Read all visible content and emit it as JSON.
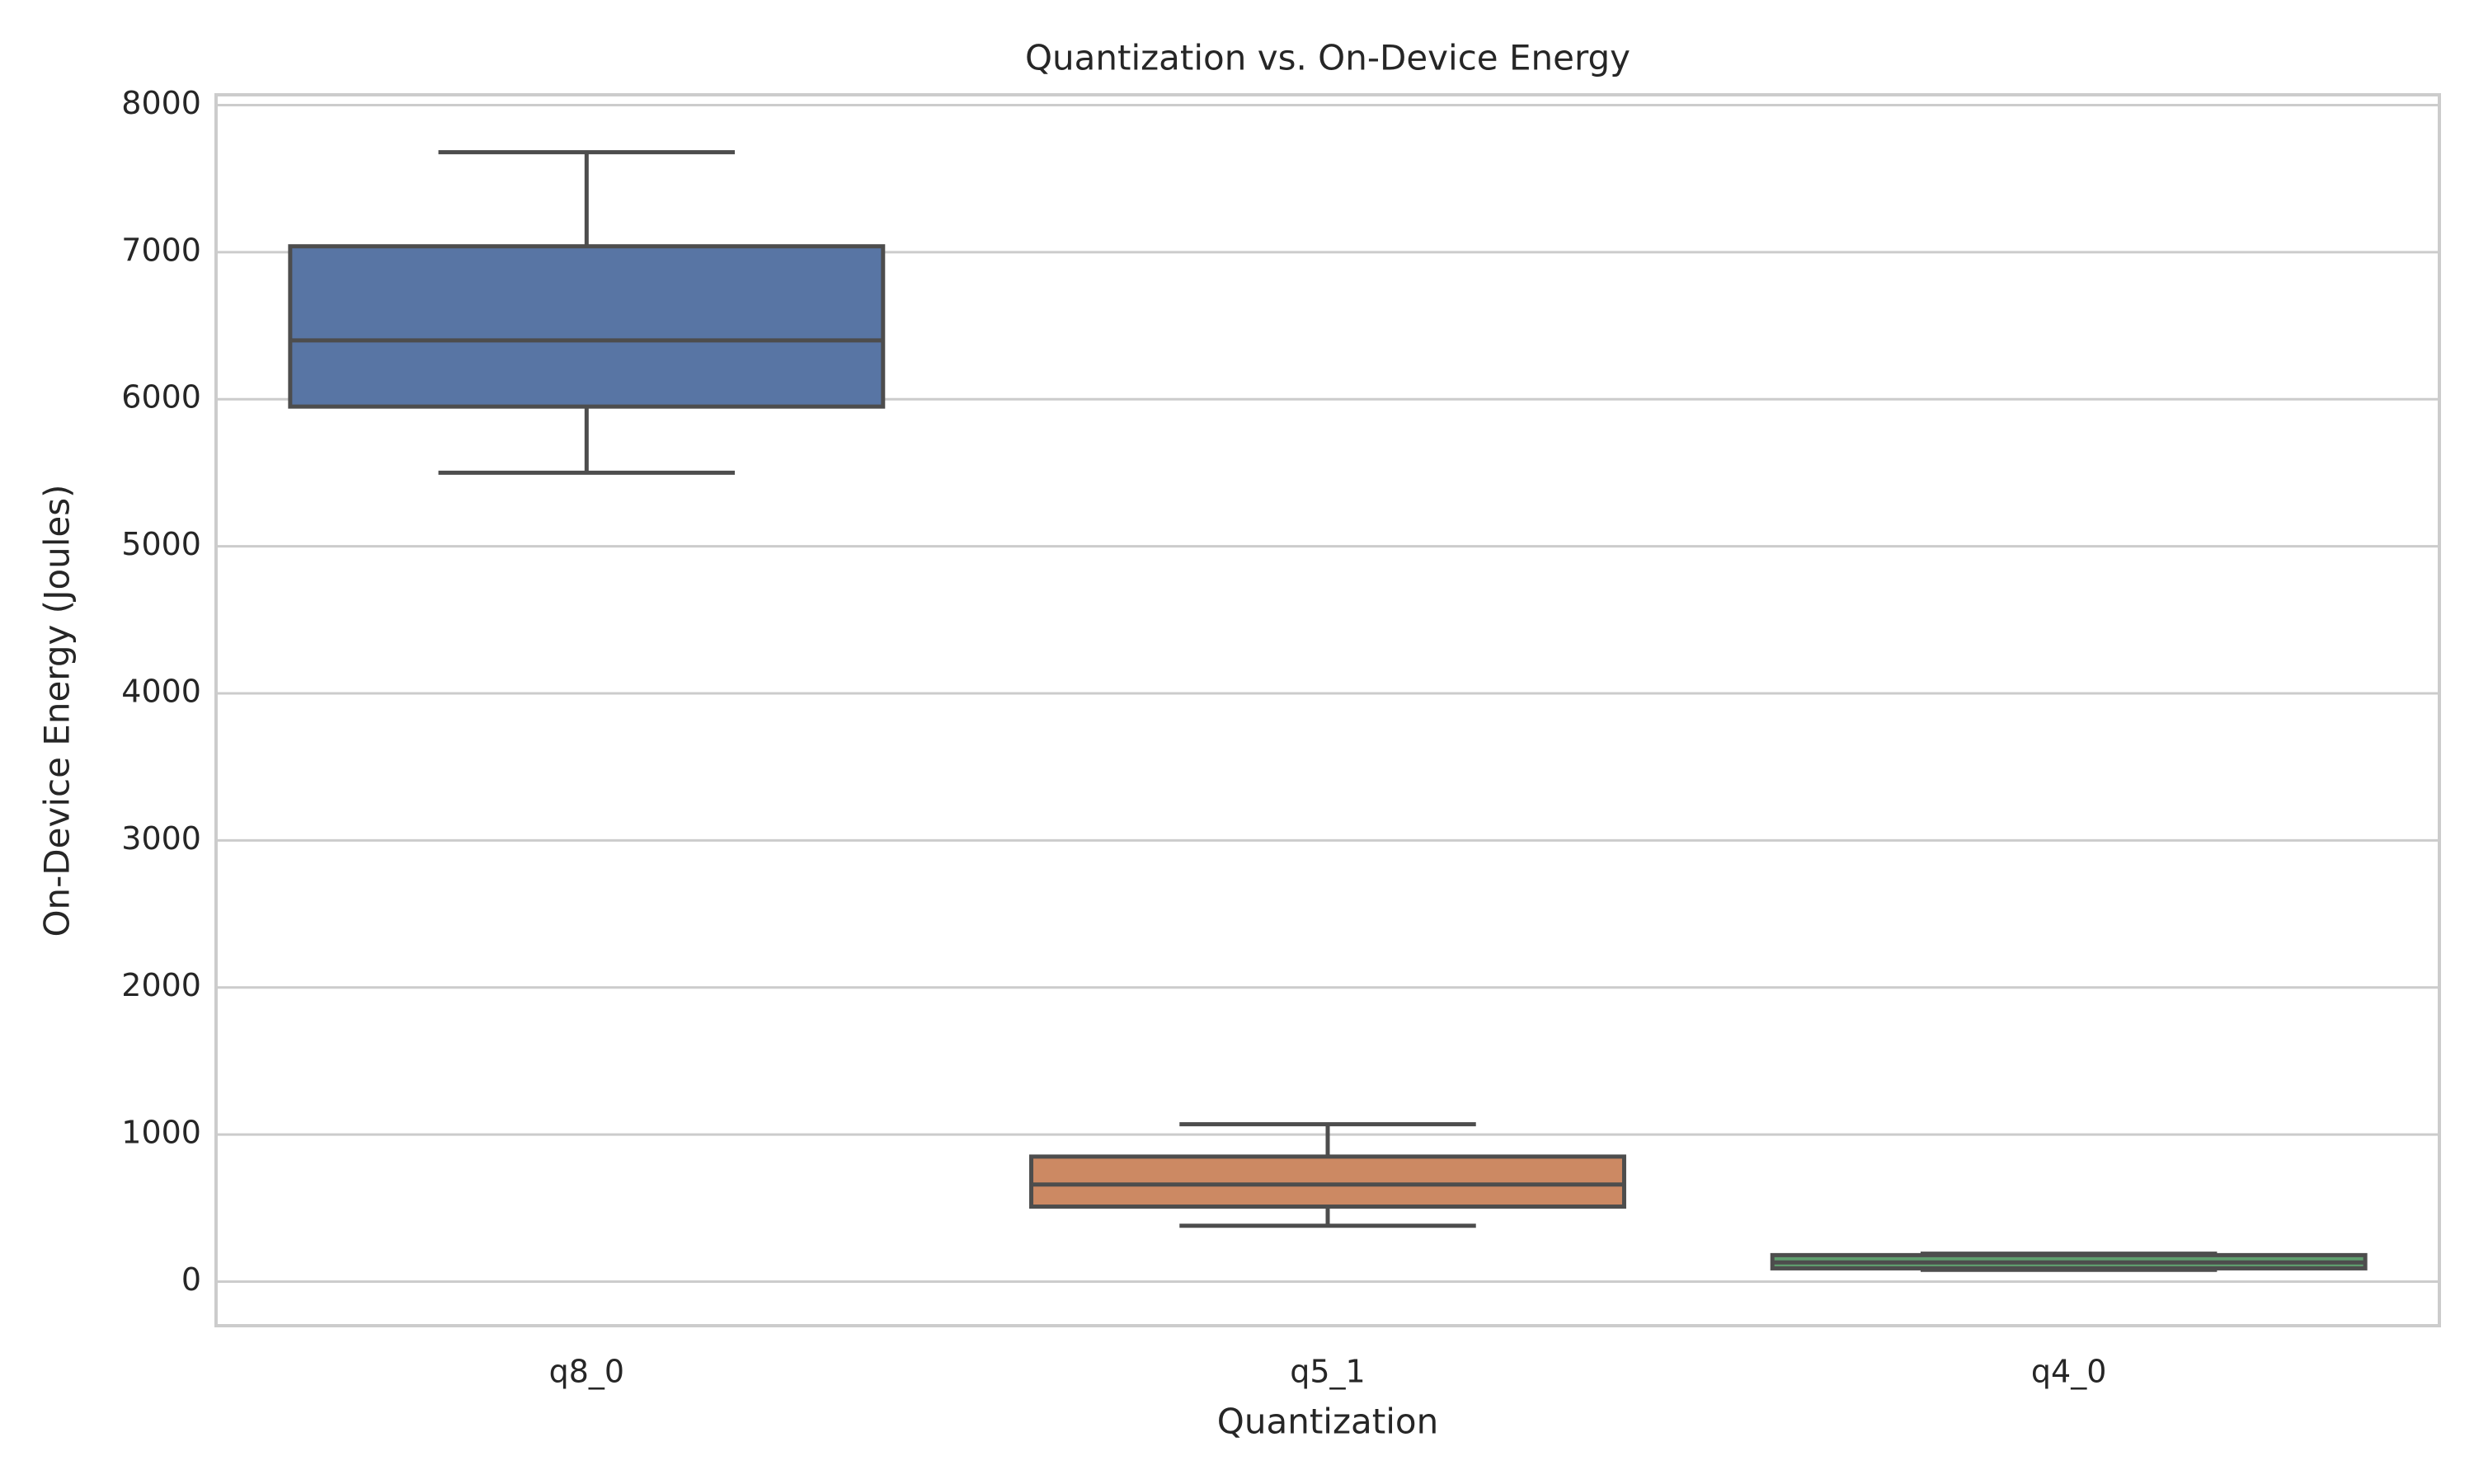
{
  "chart_data": {
    "type": "box",
    "title": "Quantization vs. On-Device Energy",
    "x_label": "Quantization",
    "y_label": "On-Device Energy (Joules)",
    "categories": [
      "q8_0",
      "q5_1",
      "q4_0"
    ],
    "colors": [
      "#5875a4",
      "#cc8963",
      "#5f9e6e"
    ],
    "whisker_low": [
      5500,
      380,
      80
    ],
    "q1": [
      5950,
      510,
      90
    ],
    "median": [
      6400,
      660,
      130
    ],
    "q3": [
      7040,
      850,
      180
    ],
    "whisker_high": [
      7680,
      1070,
      190
    ],
    "ylim": [
      -300,
      8070
    ],
    "yticks": [
      0,
      1000,
      2000,
      3000,
      4000,
      5000,
      6000,
      7000,
      8000
    ],
    "grid": true
  }
}
